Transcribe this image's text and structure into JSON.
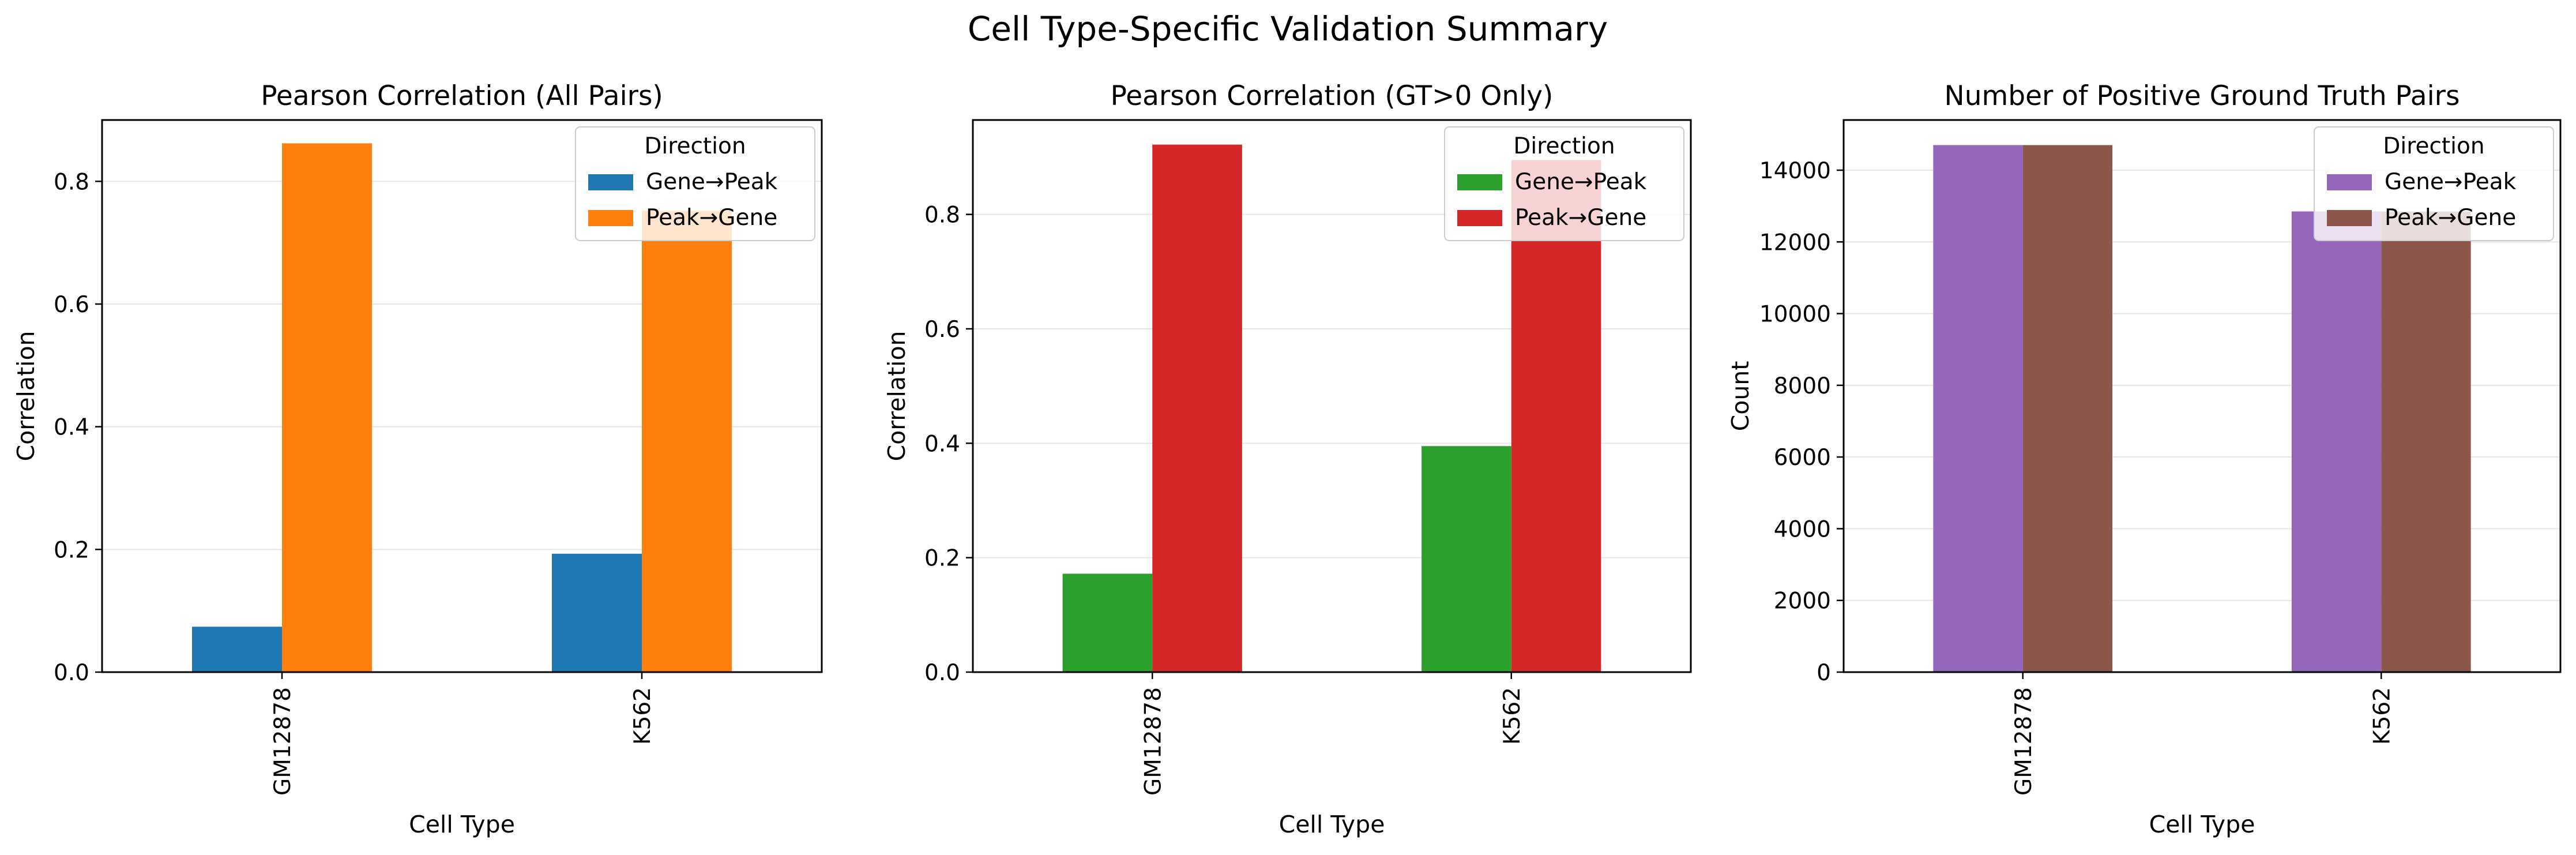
{
  "figure_title": "Cell Type-Specific Validation Summary",
  "chart_data": [
    {
      "type": "bar",
      "title": "Pearson Correlation (All Pairs)",
      "xlabel": "Cell Type",
      "ylabel": "Correlation",
      "categories": [
        "GM12878",
        "K562"
      ],
      "series": [
        {
          "name": "Gene→Peak",
          "color": "#1f77b4",
          "values": [
            0.074,
            0.193
          ]
        },
        {
          "name": "Peak→Gene",
          "color": "#ff7f0e",
          "values": [
            0.862,
            0.752
          ]
        }
      ],
      "ylim": [
        0,
        0.9
      ],
      "yticks": [
        0.0,
        0.2,
        0.4,
        0.6,
        0.8
      ],
      "ytick_labels": [
        "0.0",
        "0.2",
        "0.4",
        "0.6",
        "0.8"
      ],
      "grid": "y",
      "legend": {
        "title": "Direction",
        "position": "top-right"
      }
    },
    {
      "type": "bar",
      "title": "Pearson Correlation (GT>0 Only)",
      "xlabel": "Cell Type",
      "ylabel": "Correlation",
      "categories": [
        "GM12878",
        "K562"
      ],
      "series": [
        {
          "name": "Gene→Peak",
          "color": "#2ca02c",
          "values": [
            0.172,
            0.395
          ]
        },
        {
          "name": "Peak→Gene",
          "color": "#d62728",
          "values": [
            0.922,
            0.895
          ]
        }
      ],
      "ylim": [
        0,
        0.965
      ],
      "yticks": [
        0.0,
        0.2,
        0.4,
        0.6,
        0.8
      ],
      "ytick_labels": [
        "0.0",
        "0.2",
        "0.4",
        "0.6",
        "0.8"
      ],
      "grid": "y",
      "legend": {
        "title": "Direction",
        "position": "top-right"
      }
    },
    {
      "type": "bar",
      "title": "Number of Positive Ground Truth Pairs",
      "xlabel": "Cell Type",
      "ylabel": "Count",
      "categories": [
        "GM12878",
        "K562"
      ],
      "series": [
        {
          "name": "Gene→Peak",
          "color": "#9467bd",
          "values": [
            14700,
            12850
          ]
        },
        {
          "name": "Peak→Gene",
          "color": "#8c564b",
          "values": [
            14700,
            12850
          ]
        }
      ],
      "ylim": [
        0,
        15400
      ],
      "yticks": [
        0,
        2000,
        4000,
        6000,
        8000,
        10000,
        12000,
        14000
      ],
      "ytick_labels": [
        "0",
        "2000",
        "4000",
        "6000",
        "8000",
        "10000",
        "12000",
        "14000"
      ],
      "grid": "y",
      "legend": {
        "title": "Direction",
        "position": "top-right"
      }
    }
  ]
}
